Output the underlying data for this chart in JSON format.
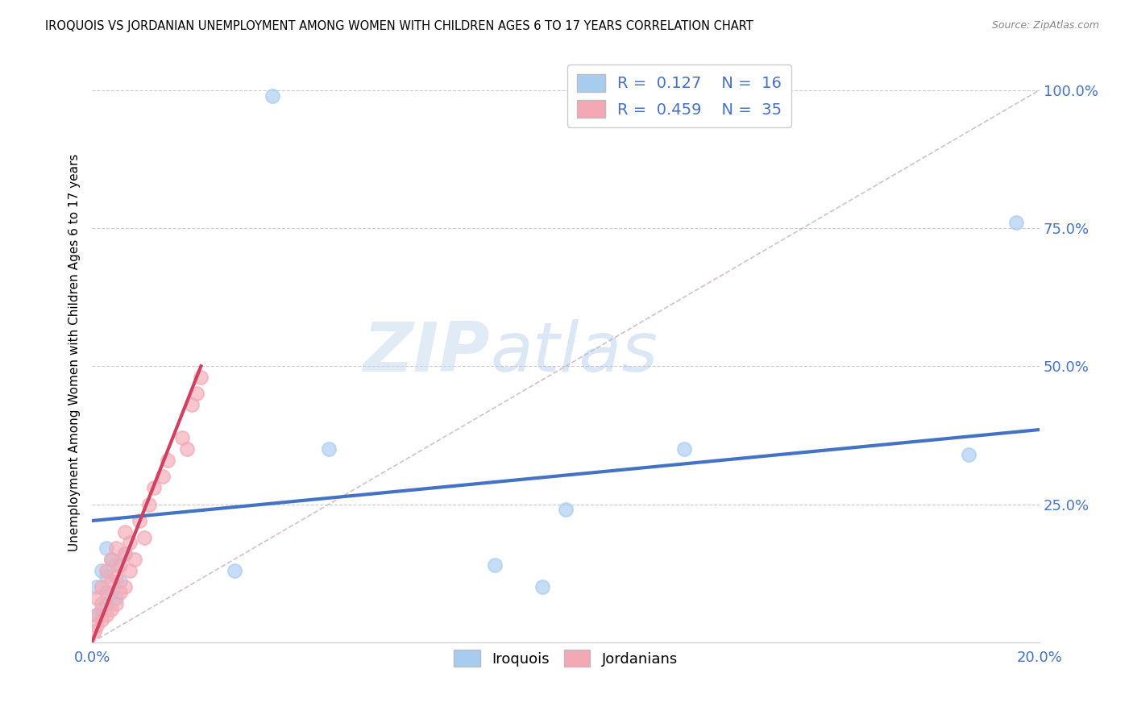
{
  "title": "IROQUOIS VS JORDANIAN UNEMPLOYMENT AMONG WOMEN WITH CHILDREN AGES 6 TO 17 YEARS CORRELATION CHART",
  "source": "Source: ZipAtlas.com",
  "ylabel": "Unemployment Among Women with Children Ages 6 to 17 years",
  "xlim": [
    0.0,
    0.2
  ],
  "ylim": [
    0.0,
    1.05
  ],
  "xticks": [
    0.0,
    0.04,
    0.08,
    0.12,
    0.16,
    0.2
  ],
  "xtick_labels": [
    "0.0%",
    "",
    "",
    "",
    "",
    "20.0%"
  ],
  "yticks": [
    0.0,
    0.25,
    0.5,
    0.75,
    1.0
  ],
  "ytick_labels": [
    "",
    "25.0%",
    "50.0%",
    "75.0%",
    "100.0%"
  ],
  "iroquois_color": "#A8CCF0",
  "jordanian_color": "#F4A8B4",
  "iroquois_line_color": "#4472C4",
  "jordanian_line_color": "#D04060",
  "diagonal_color": "#D0B8C8",
  "watermark_zip": "ZIP",
  "watermark_atlas": "atlas",
  "iroquois_x": [
    0.001,
    0.001,
    0.002,
    0.002,
    0.003,
    0.003,
    0.003,
    0.004,
    0.004,
    0.005,
    0.005,
    0.006,
    0.007,
    0.03,
    0.038,
    0.05,
    0.085,
    0.095,
    0.1,
    0.125,
    0.185,
    0.195
  ],
  "iroquois_y": [
    0.05,
    0.1,
    0.06,
    0.13,
    0.07,
    0.12,
    0.17,
    0.09,
    0.15,
    0.08,
    0.14,
    0.11,
    0.16,
    0.13,
    0.99,
    0.35,
    0.14,
    0.1,
    0.24,
    0.35,
    0.34,
    0.76
  ],
  "jordanian_x": [
    0.0005,
    0.001,
    0.001,
    0.001,
    0.002,
    0.002,
    0.002,
    0.003,
    0.003,
    0.003,
    0.004,
    0.004,
    0.004,
    0.005,
    0.005,
    0.005,
    0.006,
    0.006,
    0.007,
    0.007,
    0.007,
    0.008,
    0.008,
    0.009,
    0.01,
    0.011,
    0.012,
    0.013,
    0.015,
    0.016,
    0.019,
    0.02,
    0.021,
    0.022,
    0.023
  ],
  "jordanian_y": [
    0.02,
    0.03,
    0.05,
    0.08,
    0.04,
    0.07,
    0.1,
    0.05,
    0.09,
    0.13,
    0.06,
    0.11,
    0.15,
    0.07,
    0.12,
    0.17,
    0.09,
    0.14,
    0.1,
    0.16,
    0.2,
    0.13,
    0.18,
    0.15,
    0.22,
    0.19,
    0.25,
    0.28,
    0.3,
    0.33,
    0.37,
    0.35,
    0.43,
    0.45,
    0.48
  ],
  "blue_line_x0": 0.0,
  "blue_line_y0": 0.22,
  "blue_line_x1": 0.2,
  "blue_line_y1": 0.385,
  "pink_line_x0": 0.0,
  "pink_line_y0": 0.0,
  "pink_line_x1": 0.023,
  "pink_line_y1": 0.5
}
